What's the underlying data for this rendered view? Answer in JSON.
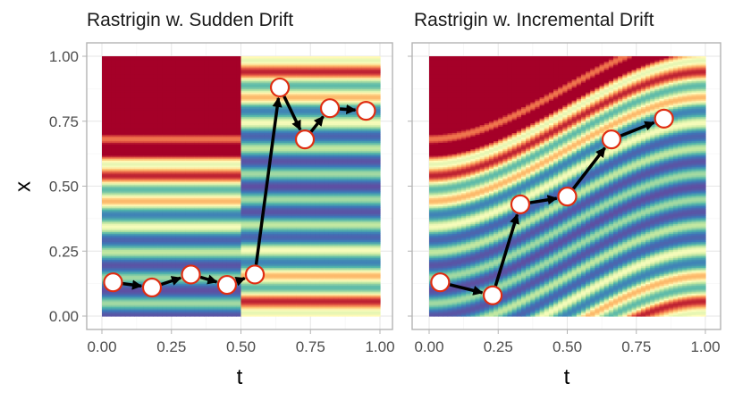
{
  "chart_data": [
    {
      "type": "heatmap",
      "title": "Rastrigin w. Sudden Drift",
      "xlabel": "t",
      "ylabel": "x",
      "xlim": [
        0,
        1
      ],
      "ylim": [
        0,
        1
      ],
      "x_ticks": [
        "0.00",
        "0.25",
        "0.50",
        "0.75",
        "1.00"
      ],
      "y_ticks": [
        "0.00",
        "0.25",
        "0.50",
        "0.75",
        "1.00"
      ],
      "drift": "sudden",
      "drift_time": 0.5,
      "shift_before": 0.0,
      "shift_after": 0.4,
      "grid": true,
      "colormap": "spectral",
      "trajectory": [
        {
          "t": 0.04,
          "x": 0.13
        },
        {
          "t": 0.18,
          "x": 0.11
        },
        {
          "t": 0.32,
          "x": 0.16
        },
        {
          "t": 0.45,
          "x": 0.12
        },
        {
          "t": 0.55,
          "x": 0.16
        },
        {
          "t": 0.64,
          "x": 0.88
        },
        {
          "t": 0.73,
          "x": 0.68
        },
        {
          "t": 0.82,
          "x": 0.8
        },
        {
          "t": 0.95,
          "x": 0.79
        }
      ]
    },
    {
      "type": "heatmap",
      "title": "Rastrigin w. Incremental Drift",
      "xlabel": "t",
      "ylabel": "",
      "xlim": [
        0,
        1
      ],
      "ylim": [
        0,
        1
      ],
      "x_ticks": [
        "0.00",
        "0.25",
        "0.50",
        "0.75",
        "1.00"
      ],
      "y_ticks": [],
      "drift": "incremental",
      "drift_start_shift": 0.0,
      "drift_end_shift": 0.4,
      "grid": true,
      "colormap": "spectral",
      "trajectory": [
        {
          "t": 0.04,
          "x": 0.13
        },
        {
          "t": 0.23,
          "x": 0.08
        },
        {
          "t": 0.33,
          "x": 0.43
        },
        {
          "t": 0.5,
          "x": 0.46
        },
        {
          "t": 0.66,
          "x": 0.68
        },
        {
          "t": 0.85,
          "x": 0.76
        }
      ]
    }
  ],
  "colors": {
    "point_stroke": "#e02d12",
    "point_fill": "#ffffff",
    "arrow": "#000000",
    "panel_border": "#b3b3b3",
    "grid": "#e6e6e6"
  }
}
